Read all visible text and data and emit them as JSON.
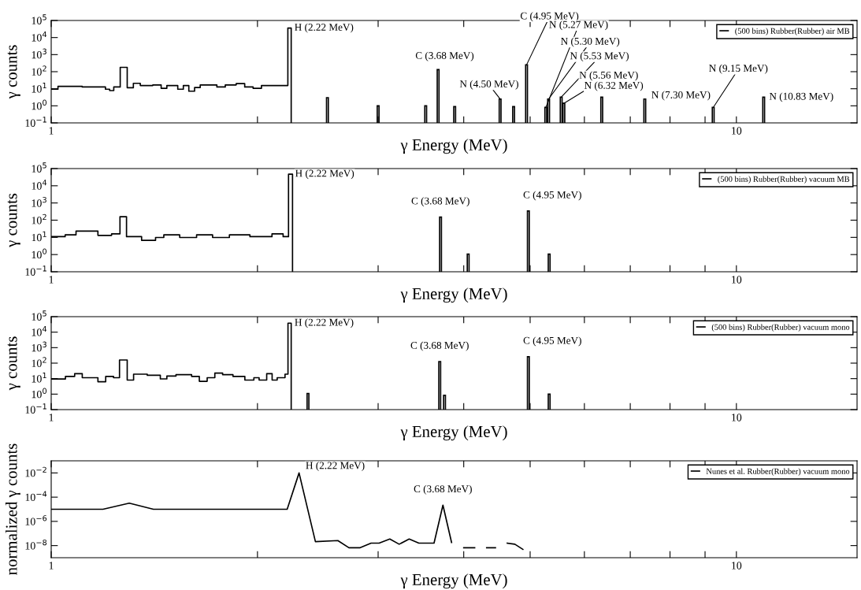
{
  "chart_data": [
    {
      "type": "step",
      "xlabel": "γ Energy (MeV)",
      "ylabel": "γ counts",
      "log": "xy",
      "grid": false,
      "legend": "top right",
      "xlim": [
        1,
        15
      ],
      "xticks": [
        1,
        {
          "value": 2,
          "label": null
        },
        {
          "value": 3,
          "label": null
        },
        {
          "value": 4,
          "label": null
        },
        {
          "value": 5,
          "label": null
        },
        {
          "value": 6,
          "label": null
        },
        {
          "value": 7,
          "label": null
        },
        {
          "value": 8,
          "label": null
        },
        {
          "value": 9,
          "label": null
        },
        10
      ],
      "ylim": [
        0.1,
        100000
      ],
      "yticks": [
        {
          "value": 0.1,
          "label": "10$^{−1}$"
        },
        {
          "value": 1,
          "label": "10$^{0}$"
        },
        {
          "value": 10,
          "label": "10$^{1}$"
        },
        {
          "value": 100,
          "label": "10$^{2}$"
        },
        {
          "value": 1000,
          "label": "10$^{3}$"
        },
        {
          "value": 10000,
          "label": "10$^{4}$"
        },
        {
          "value": 100000,
          "label": "10$^{5}$"
        }
      ],
      "series": [
        {
          "name": "(500 bins) Rubber(Rubber) air MB",
          "color": "#000000",
          "x": [
            1.0,
            1.023,
            1.11,
            1.2,
            1.217,
            1.234,
            1.261,
            1.291,
            1.318,
            1.349,
            1.407,
            1.447,
            1.475,
            1.53,
            1.559,
            1.588,
            1.619,
            1.65,
            1.745,
            1.795,
            1.862,
            1.916,
            1.971,
            2.027,
            2.215,
            2.24
          ],
          "values": [
            9.4,
            13.8,
            12.7,
            9.4,
            7.8,
            12.7,
            180,
            11.4,
            20.8,
            15.4,
            16.7,
            10.5,
            15.4,
            9.4,
            15.4,
            7.2,
            11.8,
            16.7,
            12.7,
            16.7,
            20,
            12.7,
            10.5,
            15.4,
            36000,
            0.1
          ]
        },
        {
          "type": "bar",
          "color": "#000000",
          "x": [
            2.53,
            3.0,
            3.52,
            3.67,
            3.88,
            4.52,
            4.73,
            4.94,
            5.27,
            5.32,
            5.55,
            5.6,
            6.36,
            7.35,
            9.25,
            10.96
          ],
          "values": [
            3.0,
            1.0,
            1.0,
            133,
            0.9,
            2.5,
            0.9,
            250,
            0.8,
            2.5,
            3.2,
            1.4,
            3.2,
            2.5,
            0.8,
            3.2
          ]
        }
      ],
      "annotations": [
        {
          "text": "H (2.22 MeV)",
          "x": 2.215,
          "y": 36000
        },
        {
          "text": "C (3.68 MeV)",
          "x": 3.67,
          "y": 133
        },
        {
          "text": "N (4.50 MeV)",
          "x": 4.52,
          "y": 2.5
        },
        {
          "text": "C (4.95 MeV)",
          "x": 4.94,
          "y": 250
        },
        {
          "text": "N (5.27 MeV)",
          "x": 5.27,
          "y": 0.8
        },
        {
          "text": "N (5.30 MeV)",
          "x": 5.32,
          "y": 2.5
        },
        {
          "text": "N (5.53 MeV)",
          "x": 5.55,
          "y": 3.2
        },
        {
          "text": "N (5.56 MeV)",
          "x": 5.6,
          "y": 1.4
        },
        {
          "text": "N (6.32 MeV)",
          "x": 6.36,
          "y": 3.2
        },
        {
          "text": "N (7.30 MeV)",
          "x": 7.35,
          "y": 2.5
        },
        {
          "text": "N (9.15 MeV)",
          "x": 9.25,
          "y": 0.8
        },
        {
          "text": "N (10.83 MeV)",
          "x": 10.96,
          "y": 3.2
        }
      ]
    },
    {
      "type": "step",
      "xlabel": "γ Energy (MeV)",
      "ylabel": "γ counts",
      "log": "xy",
      "grid": false,
      "legend": "top right",
      "xlim": [
        1,
        15
      ],
      "xticks": [
        1,
        {
          "value": 2,
          "label": null
        },
        {
          "value": 3,
          "label": null
        },
        {
          "value": 4,
          "label": null
        },
        {
          "value": 5,
          "label": null
        },
        {
          "value": 6,
          "label": null
        },
        {
          "value": 7,
          "label": null
        },
        {
          "value": 8,
          "label": null
        },
        {
          "value": 9,
          "label": null
        },
        10
      ],
      "ylim": [
        0.1,
        100000
      ],
      "yticks": [
        {
          "value": 0.1,
          "label": "10$^{−1}$"
        },
        {
          "value": 1,
          "label": "10$^{0}$"
        },
        {
          "value": 10,
          "label": "10$^{1}$"
        },
        {
          "value": 100,
          "label": "10$^{2}$"
        },
        {
          "value": 1000,
          "label": "10$^{3}$"
        },
        {
          "value": 10000,
          "label": "10$^{4}$"
        },
        {
          "value": 100000,
          "label": "10$^{5}$"
        }
      ],
      "series": [
        {
          "name": "(500 bins) Rubber(Rubber) vacuum MB",
          "color": "#000000",
          "x": [
            1.0,
            1.048,
            1.087,
            1.17,
            1.225,
            1.26,
            1.288,
            1.355,
            1.42,
            1.46,
            1.54,
            1.63,
            1.72,
            1.82,
            1.95,
            2.1,
            2.18,
            2.22,
            2.25
          ],
          "values": [
            11,
            14,
            23,
            13,
            16,
            160,
            11,
            6.7,
            9.8,
            14,
            9.8,
            14,
            9.8,
            14,
            11,
            16,
            11,
            47000,
            0.1
          ]
        },
        {
          "type": "bar",
          "color": "#000000",
          "x": [
            3.7,
            4.06,
            4.97,
            5.33
          ],
          "values": [
            150,
            1.06,
            340,
            1.06
          ]
        }
      ],
      "annotations": [
        {
          "text": "H (2.22 MeV)",
          "x": 2.22,
          "y": 47000
        },
        {
          "text": "C (3.68 MeV)",
          "x": 3.7,
          "y": 150
        },
        {
          "text": "C (4.95 MeV)",
          "x": 4.97,
          "y": 340
        }
      ]
    },
    {
      "type": "step",
      "xlabel": "γ Energy (MeV)",
      "ylabel": "γ counts",
      "log": "xy",
      "grid": false,
      "legend": "top right",
      "xlim": [
        1,
        15
      ],
      "xticks": [
        1,
        {
          "value": 2,
          "label": null
        },
        {
          "value": 3,
          "label": null
        },
        {
          "value": 4,
          "label": null
        },
        {
          "value": 5,
          "label": null
        },
        {
          "value": 6,
          "label": null
        },
        {
          "value": 7,
          "label": null
        },
        {
          "value": 8,
          "label": null
        },
        {
          "value": 9,
          "label": null
        },
        10
      ],
      "ylim": [
        0.1,
        100000
      ],
      "yticks": [
        {
          "value": 0.1,
          "label": "10$^{−1}$"
        },
        {
          "value": 1,
          "label": "10$^{0}$"
        },
        {
          "value": 10,
          "label": "10$^{1}$"
        },
        {
          "value": 100,
          "label": "10$^{2}$"
        },
        {
          "value": 1000,
          "label": "10$^{3}$"
        },
        {
          "value": 10000,
          "label": "10$^{4}$"
        },
        {
          "value": 100000,
          "label": "10$^{5}$"
        }
      ],
      "series": [
        {
          "name": "(500 bins) Rubber(Rubber) vacuum mono",
          "color": "#000000",
          "x": [
            1.0,
            1.049,
            1.082,
            1.11,
            1.14,
            1.17,
            1.201,
            1.233,
            1.258,
            1.291,
            1.319,
            1.381,
            1.443,
            1.475,
            1.521,
            1.603,
            1.645,
            1.689,
            1.733,
            1.779,
            1.842,
            1.917,
            1.976,
            2.011,
            2.063,
            2.101,
            2.137,
            2.194,
            2.216,
            2.24
          ],
          "values": [
            9.5,
            14,
            21,
            11.5,
            11.5,
            6.3,
            14,
            11.5,
            160,
            8.1,
            19.5,
            16.5,
            9.6,
            14.6,
            18,
            14,
            6.7,
            11.5,
            23,
            18,
            14,
            8.1,
            11.5,
            8.1,
            21,
            8.1,
            11.5,
            19.5,
            38000,
            0.1
          ]
        },
        {
          "type": "bar",
          "color": "#000000",
          "x": [
            2.37,
            3.69,
            3.75,
            4.97,
            5.33
          ],
          "values": [
            1.1,
            126,
            0.83,
            260,
            1.0
          ]
        }
      ],
      "annotations": [
        {
          "text": "H (2.22 MeV)",
          "x": 2.216,
          "y": 38000
        },
        {
          "text": "C (3.68 MeV)",
          "x": 3.69,
          "y": 126
        },
        {
          "text": "C (4.95 MeV)",
          "x": 4.97,
          "y": 260
        }
      ]
    },
    {
      "type": "line",
      "xlabel": "γ Energy (MeV)",
      "ylabel": "normalized γ counts",
      "log": "xy",
      "grid": false,
      "legend": "top right",
      "xlim": [
        1,
        15
      ],
      "xticks": [
        1,
        {
          "value": 2,
          "label": null
        },
        {
          "value": 3,
          "label": null
        },
        {
          "value": 4,
          "label": null
        },
        {
          "value": 5,
          "label": null
        },
        {
          "value": 6,
          "label": null
        },
        {
          "value": 7,
          "label": null
        },
        {
          "value": 8,
          "label": null
        },
        {
          "value": 9,
          "label": null
        },
        10
      ],
      "ylim": [
        1e-09,
        0.1
      ],
      "yticks": [
        {
          "value": 1e-08,
          "label": "10$^{−8}$"
        },
        {
          "value": 1e-06,
          "label": "10$^{−6}$"
        },
        {
          "value": 0.0001,
          "label": "10$^{−4}$"
        },
        {
          "value": 0.01,
          "label": "10$^{−2}$"
        }
      ],
      "series": [
        {
          "name": "Nunes et al. Rubber(Rubber) vacuum mono",
          "color": "#000000",
          "x": [
            1.0,
            1.19,
            1.3,
            1.41,
            2.21,
            2.3,
            2.43,
            2.62,
            2.72,
            2.82,
            2.93,
            3.01,
            3.12,
            3.22,
            3.33,
            3.44,
            3.62,
            3.73,
            3.84,
            3.92,
            4.0,
            4.15,
            4.24,
            4.32,
            4.45,
            4.54,
            4.63,
            4.75,
            4.88
          ],
          "values": [
            1e-05,
            1e-05,
            3.2e-05,
            1e-05,
            1e-05,
            0.01,
            2.1e-08,
            2.6e-08,
            6.6e-09,
            6.6e-09,
            1.6e-08,
            1.6e-08,
            3.5e-08,
            1.3e-08,
            3.5e-08,
            1.6e-08,
            1.6e-08,
            2.2e-05,
            1.8e-08,
            null,
            6.6e-09,
            6.6e-09,
            null,
            6.6e-09,
            6.6e-09,
            null,
            1.6e-08,
            1.3e-08,
            4.9e-09
          ]
        }
      ],
      "annotations": [
        {
          "text": "H (2.22 MeV)",
          "x": 2.3,
          "y": 0.01
        },
        {
          "text": "C (3.68 MeV)",
          "x": 3.73,
          "y": 2.2e-05
        }
      ]
    }
  ]
}
